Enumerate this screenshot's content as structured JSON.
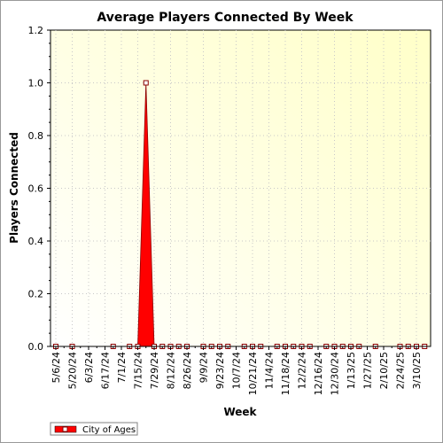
{
  "chart_data": {
    "type": "area",
    "title": "Average Players Connected By Week",
    "xlabel": "Week",
    "ylabel": "Players Connected",
    "ylim": [
      0,
      1.2
    ],
    "yticks": [
      "0.0",
      "0.2",
      "0.4",
      "0.6",
      "0.8",
      "1.0",
      "1.2"
    ],
    "ytick_values": [
      0,
      0.2,
      0.4,
      0.6,
      0.8,
      1.0,
      1.2
    ],
    "x_tick_labels": [
      "5/6/24",
      "5/20/24",
      "6/3/24",
      "6/17/24",
      "7/1/24",
      "7/15/24",
      "7/29/24",
      "8/12/24",
      "8/26/24",
      "9/9/24",
      "9/23/24",
      "10/7/24",
      "10/21/24",
      "11/4/24",
      "11/18/24",
      "12/2/24",
      "12/16/24",
      "12/30/24",
      "1/13/25",
      "1/27/25",
      "2/10/25",
      "2/24/25",
      "3/10/25"
    ],
    "grid": true,
    "legend_position": "bottom-left",
    "series": [
      {
        "name": "City of Ages",
        "color": "#ff0000",
        "marker_weeks": [
          "5/6/24",
          "5/20/24",
          "6/24/24",
          "7/8/24",
          "7/15/24",
          "7/22/24",
          "7/29/24",
          "8/5/24",
          "8/12/24",
          "8/19/24",
          "8/26/24",
          "9/9/24",
          "9/16/24",
          "9/23/24",
          "9/30/24",
          "10/14/24",
          "10/21/24",
          "10/28/24",
          "11/11/24",
          "11/18/24",
          "11/25/24",
          "12/2/24",
          "12/9/24",
          "12/23/24",
          "12/30/24",
          "1/6/25",
          "1/13/25",
          "1/20/25",
          "2/3/25",
          "2/24/25",
          "3/3/25",
          "3/10/25",
          "3/17/25"
        ],
        "marker_values": [
          0,
          0,
          0,
          0,
          0,
          1.0,
          0,
          0,
          0,
          0,
          0,
          0,
          0,
          0,
          0,
          0,
          0,
          0,
          0,
          0,
          0,
          0,
          0,
          0,
          0,
          0,
          0,
          0,
          0,
          0,
          0,
          0,
          0
        ]
      }
    ]
  }
}
